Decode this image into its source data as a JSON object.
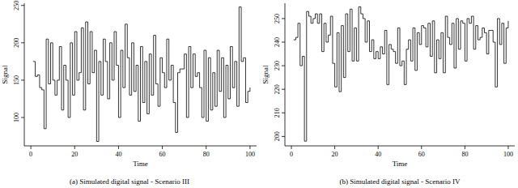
{
  "chart_data": [
    {
      "type": "step",
      "title": "(a) Simulated digital signal - Scenario III",
      "x_label": "Time",
      "y_label": "Signal",
      "color": "#000000",
      "x": [
        1,
        2,
        3,
        4,
        5,
        6,
        7,
        8,
        9,
        10,
        11,
        12,
        13,
        14,
        15,
        16,
        17,
        18,
        19,
        20,
        21,
        22,
        23,
        24,
        25,
        26,
        27,
        28,
        29,
        30,
        31,
        32,
        33,
        34,
        35,
        36,
        37,
        38,
        39,
        40,
        41,
        42,
        43,
        44,
        45,
        46,
        47,
        48,
        49,
        50,
        51,
        52,
        53,
        54,
        55,
        56,
        57,
        58,
        59,
        60,
        61,
        62,
        63,
        64,
        65,
        66,
        67,
        68,
        69,
        70,
        71,
        72,
        73,
        74,
        75,
        76,
        77,
        78,
        79,
        80,
        81,
        82,
        83,
        84,
        85,
        86,
        87,
        88,
        89,
        90,
        91,
        92,
        93,
        94,
        95,
        96,
        97,
        98,
        99,
        100
      ],
      "values": [
        175,
        155,
        157,
        140,
        137,
        85,
        205,
        145,
        200,
        150,
        130,
        150,
        195,
        110,
        170,
        150,
        100,
        200,
        130,
        215,
        150,
        160,
        220,
        110,
        228,
        145,
        215,
        160,
        190,
        68,
        175,
        130,
        205,
        175,
        125,
        200,
        150,
        215,
        170,
        100,
        190,
        140,
        225,
        180,
        130,
        200,
        135,
        170,
        95,
        195,
        120,
        175,
        105,
        185,
        130,
        210,
        145,
        115,
        180,
        160,
        140,
        205,
        150,
        170,
        120,
        80,
        160,
        165,
        165,
        185,
        100,
        195,
        140,
        185,
        155,
        160,
        140,
        100,
        190,
        95,
        180,
        110,
        160,
        115,
        190,
        135,
        180,
        100,
        170,
        125,
        195,
        140,
        175,
        115,
        248,
        175,
        180,
        120,
        135,
        140
      ],
      "xlim": [
        -3,
        103
      ],
      "xticks": [
        0,
        20,
        40,
        60,
        80,
        100
      ],
      "ylim": [
        62,
        253
      ],
      "yticks": [
        100,
        150,
        200,
        250
      ]
    },
    {
      "type": "step",
      "title": "(b) Simulated digital signal - Scenario IV",
      "x_label": "Time",
      "y_label": "Signal",
      "color": "#000000",
      "x": [
        1,
        2,
        3,
        4,
        5,
        6,
        7,
        8,
        9,
        10,
        11,
        12,
        13,
        14,
        15,
        16,
        17,
        18,
        19,
        20,
        21,
        22,
        23,
        24,
        25,
        26,
        27,
        28,
        29,
        30,
        31,
        32,
        33,
        34,
        35,
        36,
        37,
        38,
        39,
        40,
        41,
        42,
        43,
        44,
        45,
        46,
        47,
        48,
        49,
        50,
        51,
        52,
        53,
        54,
        55,
        56,
        57,
        58,
        59,
        60,
        61,
        62,
        63,
        64,
        65,
        66,
        67,
        68,
        69,
        70,
        71,
        72,
        73,
        74,
        75,
        76,
        77,
        78,
        79,
        80,
        81,
        82,
        83,
        84,
        85,
        86,
        87,
        88,
        89,
        90,
        91,
        92,
        93,
        94,
        95,
        96,
        97,
        98,
        99,
        100
      ],
      "values": [
        241,
        242,
        248,
        230,
        234,
        198,
        253,
        251,
        248,
        250,
        252,
        248,
        252,
        236,
        248,
        240,
        243,
        251,
        231,
        221,
        244,
        219,
        247,
        225,
        252,
        236,
        254,
        232,
        246,
        232,
        255,
        252,
        250,
        240,
        249,
        236,
        241,
        233,
        236,
        233,
        238,
        235,
        245,
        222,
        239,
        237,
        236,
        231,
        246,
        230,
        232,
        222,
        237,
        241,
        232,
        246,
        228,
        244,
        239,
        247,
        246,
        238,
        248,
        234,
        249,
        227,
        241,
        233,
        244,
        227,
        251,
        242,
        239,
        248,
        229,
        250,
        237,
        249,
        248,
        232,
        250,
        248,
        251,
        237,
        247,
        241,
        242,
        246,
        244,
        235,
        245,
        245,
        240,
        221,
        250,
        239,
        248,
        231,
        246,
        249
      ],
      "xlim": [
        -3,
        103
      ],
      "xticks": [
        0,
        20,
        40,
        60,
        80,
        100
      ],
      "ylim": [
        196,
        256.5
      ],
      "yticks": [
        200,
        210,
        220,
        230,
        240,
        250
      ]
    }
  ]
}
